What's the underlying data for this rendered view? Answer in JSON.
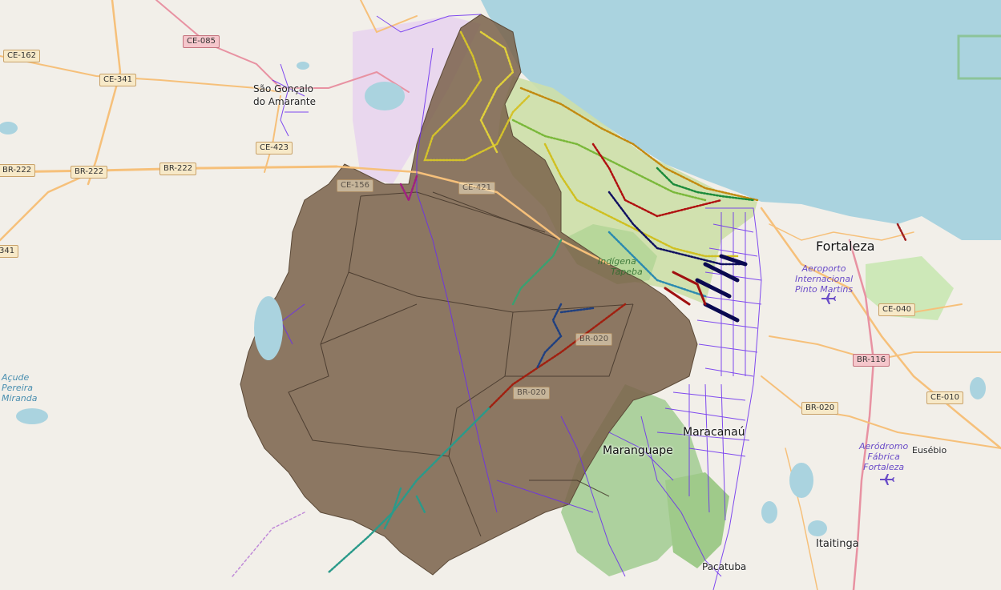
{
  "map": {
    "colors": {
      "land": "#f2efe9",
      "sea": "#aad3df",
      "region_fill": "#7a624a",
      "park": "#add19e",
      "road": "#f6c07a",
      "trunk": "#e892a2",
      "network": "#6a2cf0"
    },
    "labels": {
      "fortaleza": "Fortaleza",
      "maracanau": "Maracanaú",
      "maranguape": "Maranguape",
      "itaitinga": "Itaitinga",
      "pacatuba": "Pacatuba",
      "eusebio": "Eusébio",
      "sao_goncalo_line1": "São Gonçalo",
      "sao_goncalo_line2": "do Amarante",
      "park_line1": "Indígena",
      "park_line2": "Tapeba",
      "airport_pinto_line1": "Aeroporto",
      "airport_pinto_line2": "Internacional",
      "airport_pinto_line3": "Pinto Martins",
      "airport_fabrica_line1": "Aeródromo",
      "airport_fabrica_line2": "Fábrica",
      "airport_fabrica_line3": "Fortaleza",
      "lake_line1": "Açude",
      "lake_line2": "Pereira",
      "lake_line3": "Miranda"
    },
    "road_shields": {
      "ce085": "CE-085",
      "ce162": "CE-162",
      "ce341": "CE-341",
      "ce423": "CE-423",
      "br222_a": "BR-222",
      "br222_b": "BR-222",
      "br222_c": "BR-222",
      "br341": "341",
      "ce421": "CE-421",
      "ce156": "CE-156",
      "br020_a": "BR-020",
      "br020_b": "BR-020",
      "br116": "BR-116",
      "ce040": "CE-040",
      "ce010": "CE-010",
      "br020_c": "BR-020"
    }
  }
}
